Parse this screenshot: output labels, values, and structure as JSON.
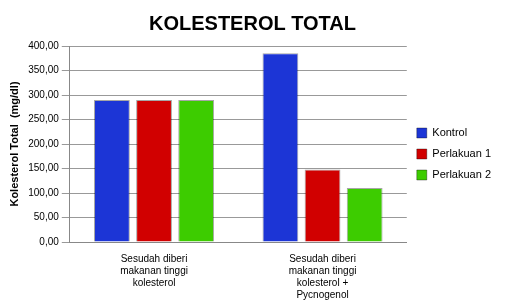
{
  "chart_data": {
    "type": "bar",
    "title": "KOLESTEROL TOTAL",
    "y_label": "Kolesterol Total  (mg/dl)",
    "categories": [
      "Sesudah diberi makanan tinggi kolesterol",
      "Sesudah diberi makanan tinggi kolesterol + Pycnogenol"
    ],
    "series": [
      {
        "name": "Kontrol",
        "color": "#1c35d6",
        "values": [
          290,
          385
        ]
      },
      {
        "name": "Perlakuan 1",
        "color": "#d10000",
        "values": [
          290,
          148
        ]
      },
      {
        "name": "Perlakuan 2",
        "color": "#3dcc00",
        "values": [
          290,
          110
        ]
      }
    ],
    "ylim": [
      0,
      400
    ],
    "yticks": [
      {
        "value": 0,
        "label": "0,00"
      },
      {
        "value": 50,
        "label": "50,00"
      },
      {
        "value": 100,
        "label": "100,00"
      },
      {
        "value": 150,
        "label": "150,00"
      },
      {
        "value": 200,
        "label": "200,00"
      },
      {
        "value": 250,
        "label": "250,00"
      },
      {
        "value": 300,
        "label": "300,00"
      },
      {
        "value": 350,
        "label": "350,00"
      },
      {
        "value": 400,
        "label": "400,00"
      }
    ],
    "grid": true,
    "legend": "right"
  }
}
